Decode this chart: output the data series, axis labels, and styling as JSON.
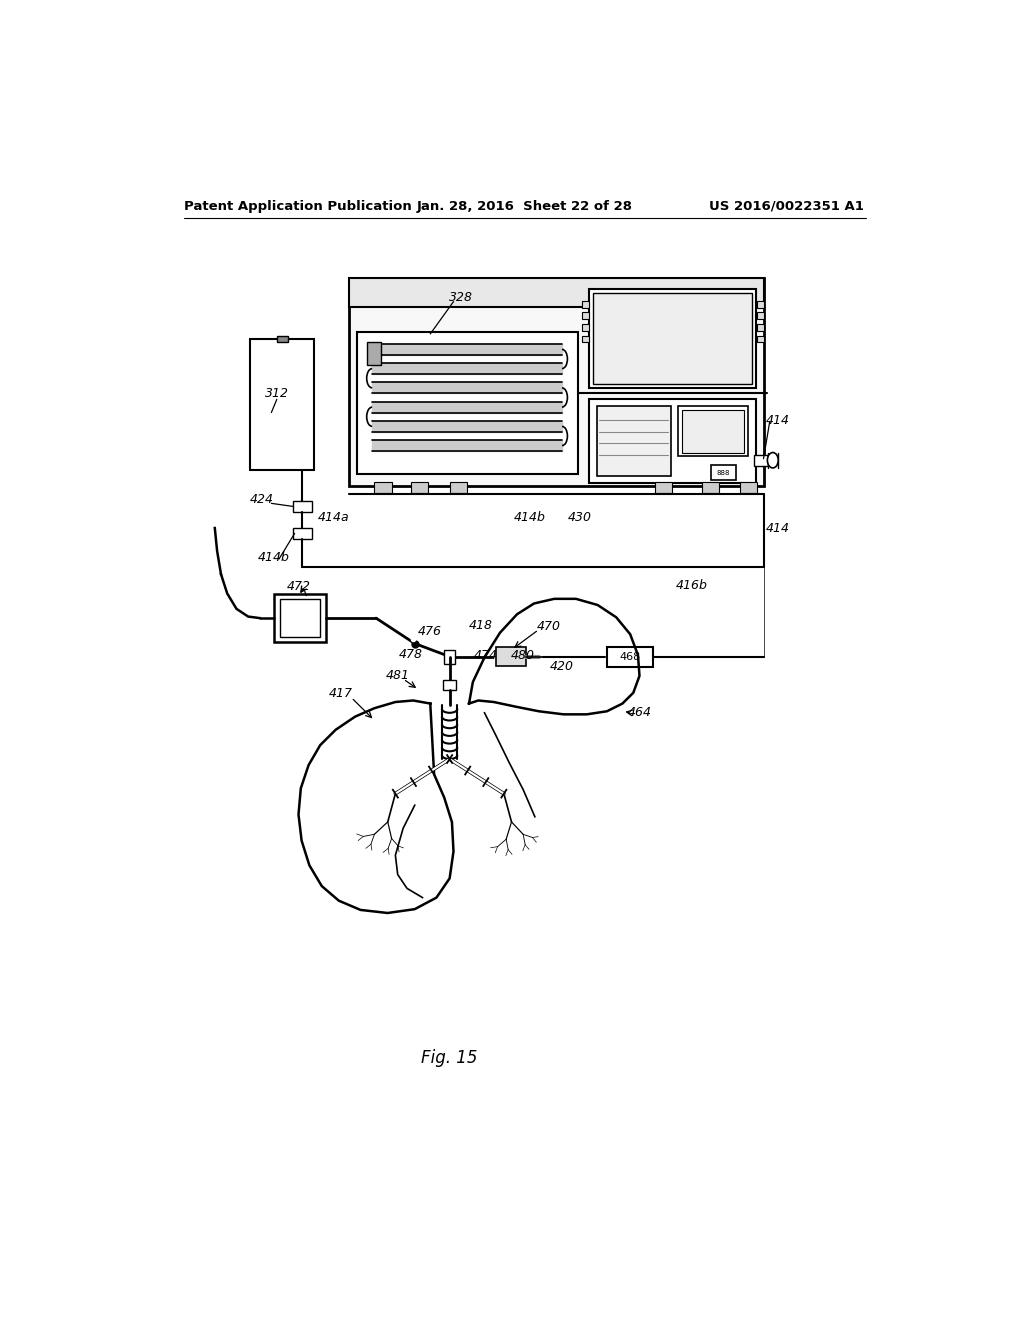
{
  "header_left": "Patent Application Publication",
  "header_center": "Jan. 28, 2016  Sheet 22 of 28",
  "header_right": "US 2016/0022351 A1",
  "figure_label": "Fig. 15",
  "bg": "#ffffff"
}
